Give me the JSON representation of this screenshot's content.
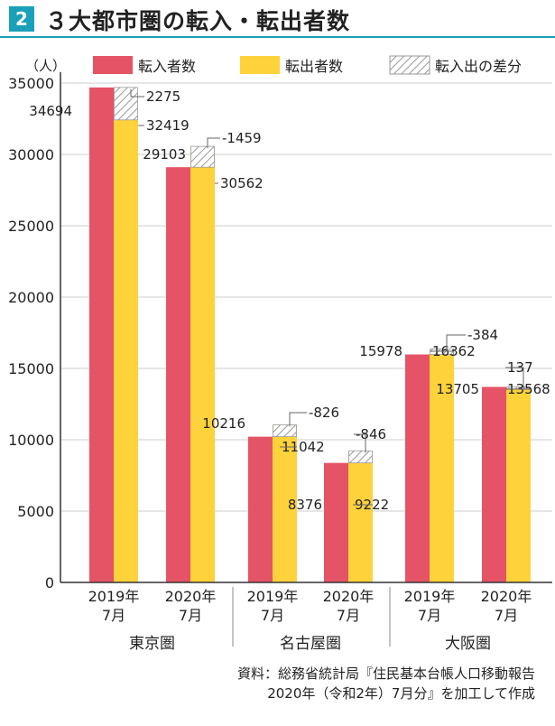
{
  "header": {
    "number": "2",
    "title": "３大都市圏の転入・転出者数"
  },
  "source": {
    "line1": "資料：総務省統計局『住民基本台帳人口移動報告",
    "line2": "2020年（令和2年）7月分』を加工して作成"
  },
  "colors": {
    "inflow": "#e55366",
    "outflow": "#fdd23b",
    "diff_hatch": "#999999",
    "accent": "#1aa0b8"
  },
  "chart_data": {
    "type": "bar",
    "yunit": "（人）",
    "ylim": [
      0,
      35000
    ],
    "yticks": [
      0,
      5000,
      10000,
      15000,
      20000,
      25000,
      30000,
      35000
    ],
    "grid": true,
    "legend": [
      "転入者数",
      "転出者数",
      "転入出の差分"
    ],
    "legend_position": "top",
    "groups": [
      {
        "region": "東京圏",
        "periods": [
          {
            "label_line1": "2019年",
            "label_line2": "7月",
            "inflow": 34694,
            "outflow": 32419,
            "diff": "2275"
          },
          {
            "label_line1": "2020年",
            "label_line2": "7月",
            "inflow": 29103,
            "outflow": 30562,
            "diff": "-1459"
          }
        ]
      },
      {
        "region": "名古屋圏",
        "periods": [
          {
            "label_line1": "2019年",
            "label_line2": "7月",
            "inflow": 10216,
            "outflow": 11042,
            "diff": "-826"
          },
          {
            "label_line1": "2020年",
            "label_line2": "7月",
            "inflow": 8376,
            "outflow": 9222,
            "diff": "-846"
          }
        ]
      },
      {
        "region": "大阪圏",
        "periods": [
          {
            "label_line1": "2019年",
            "label_line2": "7月",
            "inflow": 15978,
            "outflow": 16362,
            "diff": "-384"
          },
          {
            "label_line1": "2020年",
            "label_line2": "7月",
            "inflow": 13705,
            "outflow": 13568,
            "diff": "137"
          }
        ]
      }
    ]
  }
}
